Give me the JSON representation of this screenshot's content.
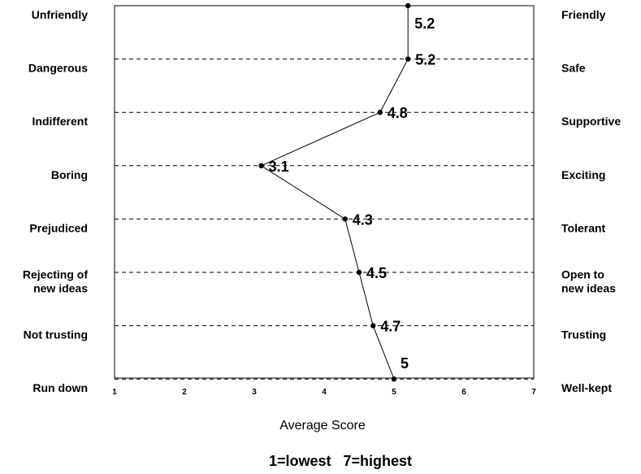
{
  "chart_data": {
    "type": "line",
    "orientation": "horizontal-profile",
    "rows": [
      {
        "left": [
          "Unfriendly"
        ],
        "right": [
          "Friendly"
        ],
        "value": 5.2,
        "label": "5.2"
      },
      {
        "left": [
          "Dangerous"
        ],
        "right": [
          "Safe"
        ],
        "value": 5.2,
        "label": "5.2"
      },
      {
        "left": [
          "Indifferent"
        ],
        "right": [
          "Supportive"
        ],
        "value": 4.8,
        "label": "4.8"
      },
      {
        "left": [
          "Boring"
        ],
        "right": [
          "Exciting"
        ],
        "value": 3.1,
        "label": "3.1"
      },
      {
        "left": [
          "Prejudiced"
        ],
        "right": [
          "Tolerant"
        ],
        "value": 4.3,
        "label": "4.3"
      },
      {
        "left": [
          "Rejecting of",
          "new ideas"
        ],
        "right": [
          "Open to",
          "new ideas"
        ],
        "value": 4.5,
        "label": "4.5"
      },
      {
        "left": [
          "Not trusting"
        ],
        "right": [
          "Trusting"
        ],
        "value": 4.7,
        "label": "4.7"
      },
      {
        "left": [
          "Run down"
        ],
        "right": [
          "Well-kept"
        ],
        "value": 5,
        "label": "5"
      }
    ],
    "xlim": [
      1,
      7
    ],
    "xticks": [
      "1",
      "2",
      "3",
      "4",
      "5",
      "6",
      "7"
    ],
    "xlabel": "Average Score",
    "note": "1=lowest   7=highest",
    "grid": "dashed horizontal lines",
    "line_color": "#000000"
  }
}
